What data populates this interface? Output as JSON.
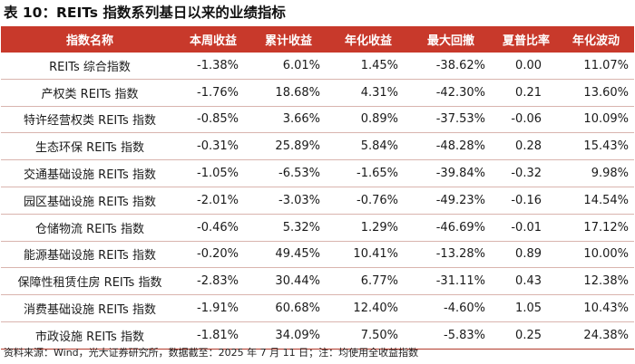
{
  "title": "表 10：REITs 指数系列基日以来的业绩指标",
  "table": {
    "headers": [
      "指数名称",
      "本周收益",
      "累计收益",
      "年化收益",
      "最大回撤",
      "夏普比率",
      "年化波动"
    ],
    "rows": [
      [
        "REITs 综合指数",
        "-1.38%",
        "6.01%",
        "1.45%",
        "-38.62%",
        "0.00",
        "11.07%"
      ],
      [
        "产权类 REITs 指数",
        "-1.76%",
        "18.68%",
        "4.31%",
        "-42.30%",
        "0.21",
        "13.60%"
      ],
      [
        "特许经营权类 REITs 指数",
        "-0.85%",
        "3.66%",
        "0.89%",
        "-37.53%",
        "-0.06",
        "10.09%"
      ],
      [
        "生态环保 REITs 指数",
        "-0.31%",
        "25.89%",
        "5.84%",
        "-48.28%",
        "0.28",
        "15.43%"
      ],
      [
        "交通基础设施 REITs 指数",
        "-1.05%",
        "-6.53%",
        "-1.65%",
        "-39.84%",
        "-0.32",
        "9.98%"
      ],
      [
        "园区基础设施 REITs 指数",
        "-2.01%",
        "-3.03%",
        "-0.76%",
        "-49.23%",
        "-0.16",
        "14.54%"
      ],
      [
        "仓储物流 REITs 指数",
        "-0.46%",
        "5.32%",
        "1.29%",
        "-46.69%",
        "-0.01",
        "17.12%"
      ],
      [
        "能源基础设施 REITs 指数",
        "-0.20%",
        "49.45%",
        "10.41%",
        "-13.28%",
        "0.89",
        "10.00%"
      ],
      [
        "保障性租赁住房 REITs 指数",
        "-2.83%",
        "30.44%",
        "6.77%",
        "-31.11%",
        "0.43",
        "12.38%"
      ],
      [
        "消费基础设施 REITs 指数",
        "-1.91%",
        "60.68%",
        "12.40%",
        "-4.60%",
        "1.05",
        "10.43%"
      ],
      [
        "市政设施 REITs 指数",
        "-1.81%",
        "34.09%",
        "7.50%",
        "-5.83%",
        "0.25",
        "24.38%"
      ]
    ]
  },
  "source": "资料来源：Wind，光大证券研究所，数据截至：2025 年 7 月 11 日；注：均使用全收益指数",
  "colors": {
    "header_bg": "#c8392b",
    "header_text": "#ffffff",
    "row_divider": "#d9b4ae"
  }
}
